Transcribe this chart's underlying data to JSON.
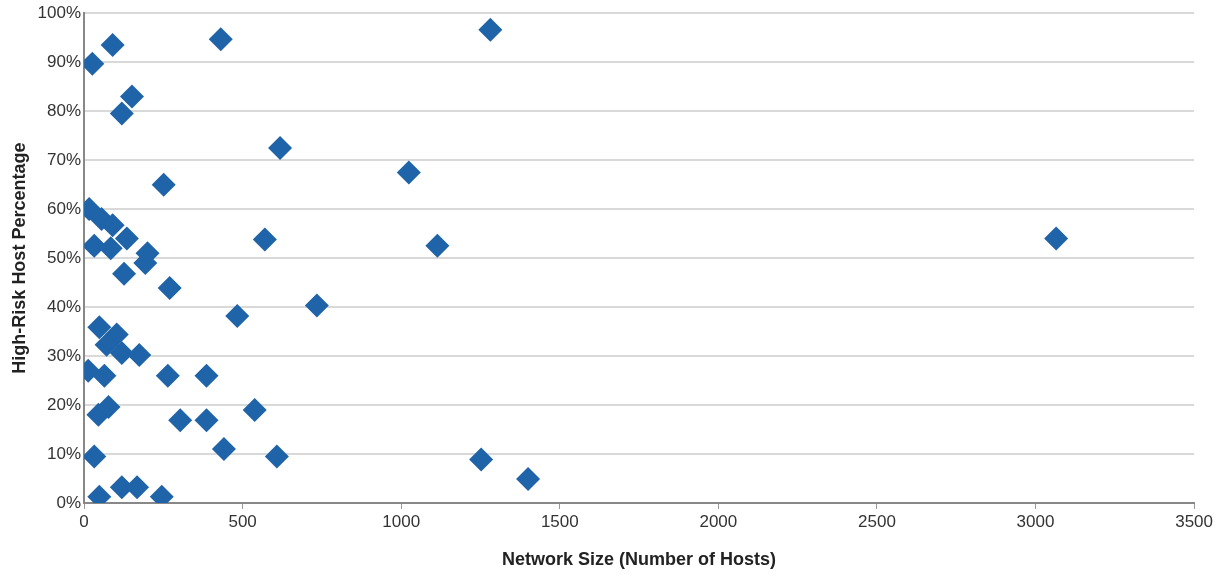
{
  "chart_data": {
    "type": "scatter",
    "xlabel": "Network Size (Number of Hosts)",
    "ylabel": "High-Risk Host Percentage",
    "x": [
      26,
      90,
      431,
      1281,
      151,
      119,
      618,
      1024,
      251,
      16,
      55,
      90,
      135,
      32,
      84,
      200,
      193,
      126,
      570,
      1114,
      3065,
      270,
      483,
      734,
      48,
      103,
      71,
      119,
      174,
      13,
      64,
      264,
      386,
      45,
      77,
      303,
      386,
      538,
      441,
      608,
      32,
      48,
      119,
      167,
      245,
      1252,
      1400
    ],
    "values": [
      89.7,
      93.5,
      94.7,
      96.6,
      83,
      79.5,
      72.5,
      67.5,
      65,
      60,
      58,
      56.7,
      54,
      52.5,
      52,
      51,
      49,
      46.8,
      53.8,
      52.5,
      54,
      43.9,
      38.2,
      40.3,
      35.9,
      34.4,
      32.3,
      30.6,
      30.2,
      27,
      26,
      26,
      26,
      18,
      19.6,
      16.9,
      16.9,
      19,
      11,
      9.5,
      9.5,
      1.3,
      3.2,
      3.2,
      1.3,
      8.9,
      4.9
    ],
    "color": "#1f63a8",
    "marker": "diamond",
    "grid": "y",
    "legend": false,
    "xlim": [
      0,
      3500
    ],
    "xticks": [
      0,
      500,
      1000,
      1500,
      2000,
      2500,
      3000,
      3500
    ],
    "ylim": [
      0,
      100
    ],
    "yticks": [
      {
        "value": 0,
        "label": "0%"
      },
      {
        "value": 10,
        "label": "10%"
      },
      {
        "value": 20,
        "label": "20%"
      },
      {
        "value": 30,
        "label": "30%"
      },
      {
        "value": 40,
        "label": "40%"
      },
      {
        "value": 50,
        "label": "50%"
      },
      {
        "value": 60,
        "label": "60%"
      },
      {
        "value": 70,
        "label": "70%"
      },
      {
        "value": 80,
        "label": "80%"
      },
      {
        "value": 90,
        "label": "90%"
      },
      {
        "value": 100,
        "label": "100%"
      }
    ]
  }
}
